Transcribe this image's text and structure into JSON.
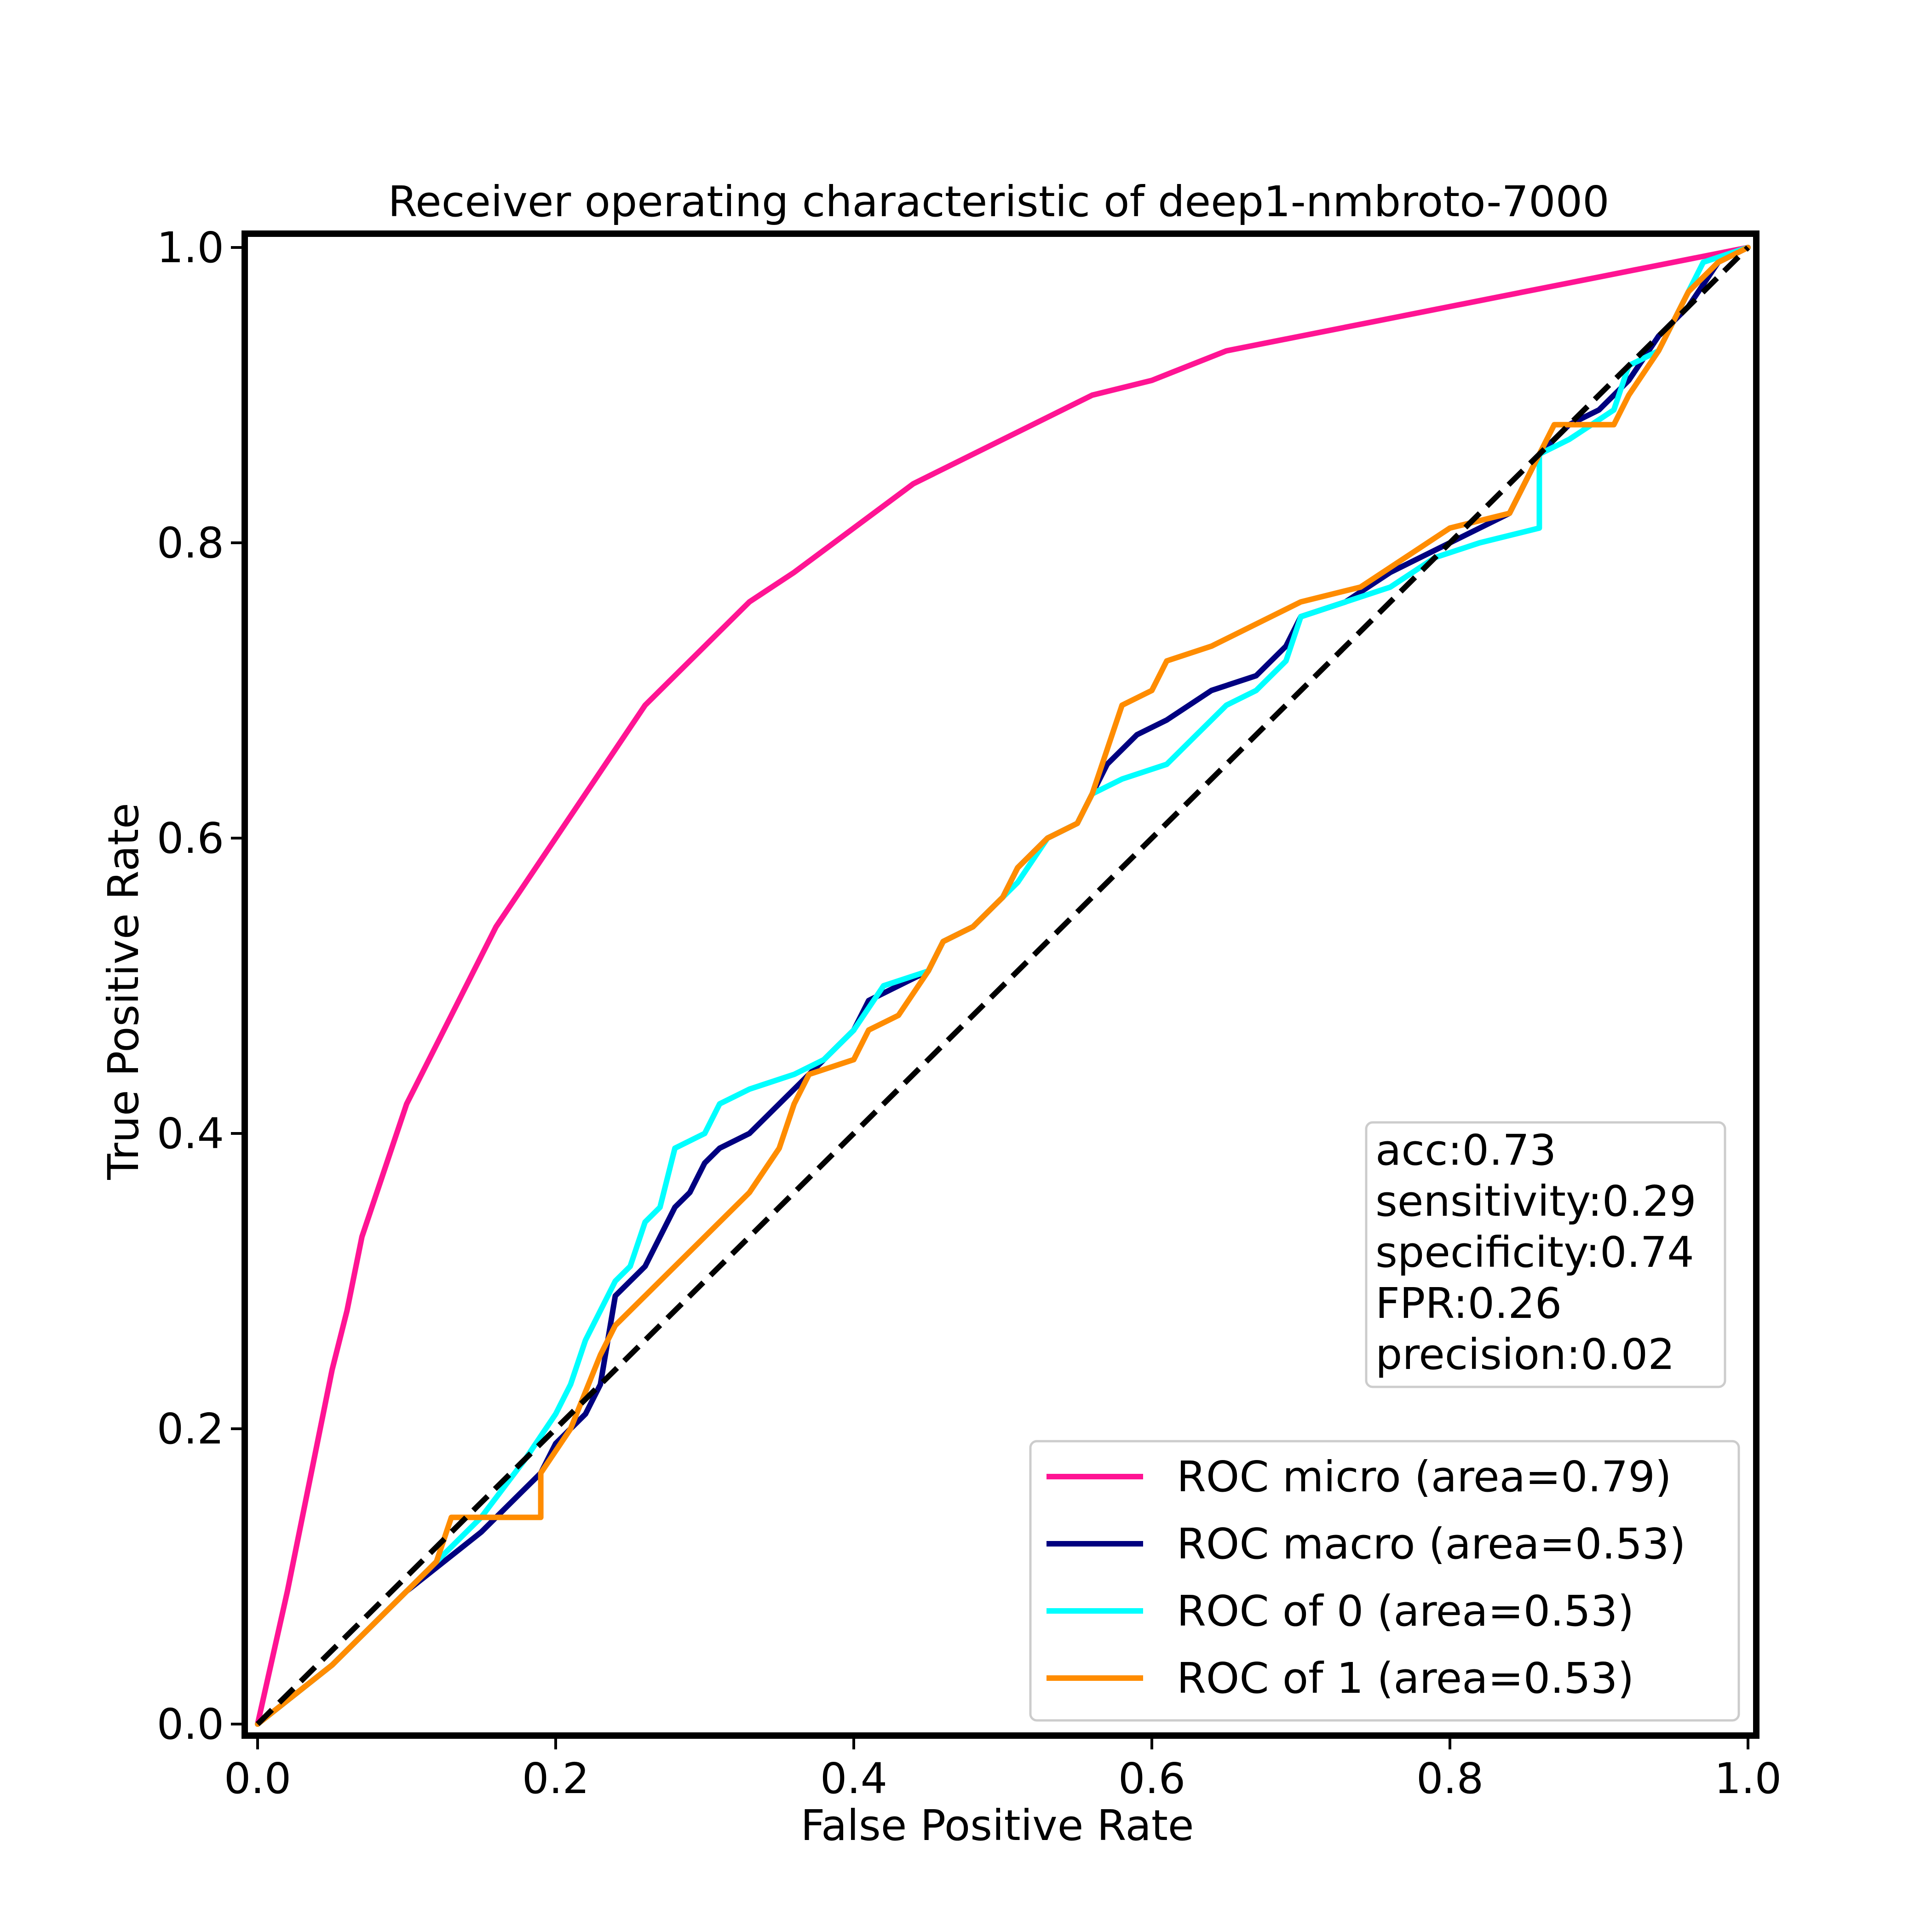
{
  "chart_data": {
    "type": "line",
    "title": "Receiver operating characteristic of deep1-nmbroto-7000",
    "xlabel": "False Positive Rate",
    "ylabel": "True Positive Rate",
    "xlim": [
      -0.01,
      1.01
    ],
    "ylim": [
      -0.01,
      1.01
    ],
    "xticks": [
      "0.0",
      "0.2",
      "0.4",
      "0.6",
      "0.8",
      "1.0"
    ],
    "yticks": [
      "0.0",
      "0.2",
      "0.4",
      "0.6",
      "0.8",
      "1.0"
    ],
    "grid": false,
    "legend_position": "lower right",
    "series": [
      {
        "name": "ROC micro (area=0.79)",
        "color": "#ff1493",
        "points": [
          [
            0,
            0
          ],
          [
            0.02,
            0.09
          ],
          [
            0.04,
            0.19
          ],
          [
            0.05,
            0.24
          ],
          [
            0.06,
            0.28
          ],
          [
            0.07,
            0.33
          ],
          [
            0.08,
            0.36
          ],
          [
            0.09,
            0.39
          ],
          [
            0.1,
            0.42
          ],
          [
            0.12,
            0.46
          ],
          [
            0.14,
            0.5
          ],
          [
            0.16,
            0.54
          ],
          [
            0.18,
            0.57
          ],
          [
            0.2,
            0.6
          ],
          [
            0.22,
            0.63
          ],
          [
            0.24,
            0.66
          ],
          [
            0.26,
            0.69
          ],
          [
            0.28,
            0.71
          ],
          [
            0.3,
            0.73
          ],
          [
            0.33,
            0.76
          ],
          [
            0.36,
            0.78
          ],
          [
            0.4,
            0.81
          ],
          [
            0.44,
            0.84
          ],
          [
            0.48,
            0.86
          ],
          [
            0.52,
            0.88
          ],
          [
            0.56,
            0.9
          ],
          [
            0.6,
            0.91
          ],
          [
            0.65,
            0.93
          ],
          [
            0.7,
            0.94
          ],
          [
            0.75,
            0.95
          ],
          [
            0.8,
            0.96
          ],
          [
            0.85,
            0.97
          ],
          [
            0.9,
            0.98
          ],
          [
            0.95,
            0.99
          ],
          [
            1.0,
            1.0
          ]
        ]
      },
      {
        "name": "ROC macro (area=0.53)",
        "color": "#000080",
        "points": [
          [
            0,
            0
          ],
          [
            0.05,
            0.04
          ],
          [
            0.1,
            0.09
          ],
          [
            0.15,
            0.13
          ],
          [
            0.19,
            0.17
          ],
          [
            0.2,
            0.19
          ],
          [
            0.22,
            0.21
          ],
          [
            0.23,
            0.23
          ],
          [
            0.24,
            0.29
          ],
          [
            0.25,
            0.3
          ],
          [
            0.26,
            0.31
          ],
          [
            0.27,
            0.33
          ],
          [
            0.28,
            0.35
          ],
          [
            0.29,
            0.36
          ],
          [
            0.3,
            0.38
          ],
          [
            0.31,
            0.39
          ],
          [
            0.33,
            0.4
          ],
          [
            0.35,
            0.42
          ],
          [
            0.37,
            0.44
          ],
          [
            0.39,
            0.46
          ],
          [
            0.4,
            0.47
          ],
          [
            0.41,
            0.49
          ],
          [
            0.43,
            0.5
          ],
          [
            0.45,
            0.51
          ],
          [
            0.46,
            0.53
          ],
          [
            0.48,
            0.54
          ],
          [
            0.5,
            0.56
          ],
          [
            0.51,
            0.58
          ],
          [
            0.53,
            0.6
          ],
          [
            0.55,
            0.61
          ],
          [
            0.56,
            0.63
          ],
          [
            0.57,
            0.65
          ],
          [
            0.59,
            0.67
          ],
          [
            0.61,
            0.68
          ],
          [
            0.64,
            0.7
          ],
          [
            0.67,
            0.71
          ],
          [
            0.69,
            0.73
          ],
          [
            0.7,
            0.75
          ],
          [
            0.73,
            0.76
          ],
          [
            0.76,
            0.78
          ],
          [
            0.8,
            0.8
          ],
          [
            0.84,
            0.82
          ],
          [
            0.86,
            0.86
          ],
          [
            0.88,
            0.88
          ],
          [
            0.9,
            0.89
          ],
          [
            0.92,
            0.91
          ],
          [
            0.94,
            0.94
          ],
          [
            0.96,
            0.96
          ],
          [
            0.98,
            0.99
          ],
          [
            1.0,
            1.0
          ]
        ]
      },
      {
        "name": "ROC of 0 (area=0.53)",
        "color": "#00ffff",
        "points": [
          [
            0,
            0
          ],
          [
            0.05,
            0.04
          ],
          [
            0.1,
            0.09
          ],
          [
            0.15,
            0.14
          ],
          [
            0.18,
            0.18
          ],
          [
            0.2,
            0.21
          ],
          [
            0.21,
            0.23
          ],
          [
            0.22,
            0.26
          ],
          [
            0.24,
            0.3
          ],
          [
            0.25,
            0.31
          ],
          [
            0.26,
            0.34
          ],
          [
            0.27,
            0.35
          ],
          [
            0.28,
            0.39
          ],
          [
            0.3,
            0.4
          ],
          [
            0.31,
            0.42
          ],
          [
            0.33,
            0.43
          ],
          [
            0.36,
            0.44
          ],
          [
            0.38,
            0.45
          ],
          [
            0.4,
            0.47
          ],
          [
            0.42,
            0.5
          ],
          [
            0.45,
            0.51
          ],
          [
            0.46,
            0.53
          ],
          [
            0.48,
            0.54
          ],
          [
            0.5,
            0.56
          ],
          [
            0.51,
            0.57
          ],
          [
            0.53,
            0.6
          ],
          [
            0.55,
            0.61
          ],
          [
            0.56,
            0.63
          ],
          [
            0.58,
            0.64
          ],
          [
            0.61,
            0.65
          ],
          [
            0.63,
            0.67
          ],
          [
            0.65,
            0.69
          ],
          [
            0.67,
            0.7
          ],
          [
            0.69,
            0.72
          ],
          [
            0.7,
            0.75
          ],
          [
            0.73,
            0.76
          ],
          [
            0.76,
            0.77
          ],
          [
            0.79,
            0.79
          ],
          [
            0.82,
            0.8
          ],
          [
            0.86,
            0.81
          ],
          [
            0.86,
            0.86
          ],
          [
            0.88,
            0.87
          ],
          [
            0.91,
            0.89
          ],
          [
            0.92,
            0.92
          ],
          [
            0.94,
            0.93
          ],
          [
            0.96,
            0.97
          ],
          [
            0.97,
            0.99
          ],
          [
            1.0,
            1.0
          ]
        ]
      },
      {
        "name": "ROC of 1 (area=0.53)",
        "color": "#ff8c00",
        "points": [
          [
            0,
            0
          ],
          [
            0.05,
            0.04
          ],
          [
            0.1,
            0.09
          ],
          [
            0.12,
            0.11
          ],
          [
            0.13,
            0.14
          ],
          [
            0.17,
            0.14
          ],
          [
            0.19,
            0.14
          ],
          [
            0.19,
            0.17
          ],
          [
            0.21,
            0.2
          ],
          [
            0.23,
            0.25
          ],
          [
            0.24,
            0.27
          ],
          [
            0.26,
            0.29
          ],
          [
            0.28,
            0.31
          ],
          [
            0.3,
            0.33
          ],
          [
            0.32,
            0.35
          ],
          [
            0.33,
            0.36
          ],
          [
            0.35,
            0.39
          ],
          [
            0.36,
            0.42
          ],
          [
            0.37,
            0.44
          ],
          [
            0.4,
            0.45
          ],
          [
            0.41,
            0.47
          ],
          [
            0.43,
            0.48
          ],
          [
            0.45,
            0.51
          ],
          [
            0.46,
            0.53
          ],
          [
            0.48,
            0.54
          ],
          [
            0.5,
            0.56
          ],
          [
            0.51,
            0.58
          ],
          [
            0.53,
            0.6
          ],
          [
            0.55,
            0.61
          ],
          [
            0.56,
            0.63
          ],
          [
            0.57,
            0.66
          ],
          [
            0.58,
            0.69
          ],
          [
            0.6,
            0.7
          ],
          [
            0.61,
            0.72
          ],
          [
            0.64,
            0.73
          ],
          [
            0.66,
            0.74
          ],
          [
            0.68,
            0.75
          ],
          [
            0.7,
            0.76
          ],
          [
            0.74,
            0.77
          ],
          [
            0.77,
            0.79
          ],
          [
            0.8,
            0.81
          ],
          [
            0.84,
            0.82
          ],
          [
            0.86,
            0.86
          ],
          [
            0.87,
            0.88
          ],
          [
            0.91,
            0.88
          ],
          [
            0.92,
            0.9
          ],
          [
            0.94,
            0.93
          ],
          [
            0.96,
            0.97
          ],
          [
            0.98,
            0.99
          ],
          [
            1.0,
            1.0
          ]
        ]
      }
    ],
    "diagonal": {
      "color": "#000000",
      "dash": true,
      "points": [
        [
          0,
          0
        ],
        [
          1,
          1
        ]
      ]
    },
    "metrics_box": [
      "acc:0.73",
      "sensitivity:0.29",
      "specificity:0.74",
      "FPR:0.26",
      "precision:0.02"
    ]
  }
}
